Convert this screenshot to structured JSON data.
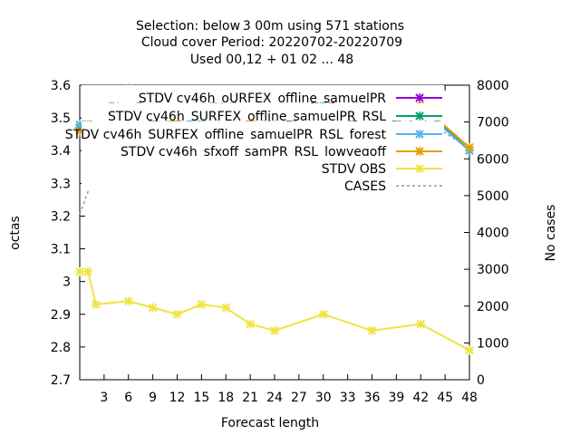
{
  "chart_data": {
    "type": "line",
    "title_lines": [
      "Selection: below 3 00m using   571 stations",
      "Cloud cover   Period: 20220702-20220709",
      "Used  00,12  + 01 02 ... 48"
    ],
    "xlabel": "Forecast length",
    "ylabel": "octas",
    "y2label": "No cases",
    "x_ticks": [
      3,
      6,
      9,
      12,
      15,
      18,
      21,
      24,
      27,
      30,
      33,
      36,
      39,
      42,
      45,
      48
    ],
    "xlim": [
      0,
      48
    ],
    "y_ticks": [
      "2.7",
      "2.8",
      "2.9",
      "3",
      "3.1",
      "3.2",
      "3.3",
      "3.4",
      "3.5",
      "3.6"
    ],
    "ylim": [
      2.7,
      3.6
    ],
    "y2_ticks": [
      0,
      1000,
      2000,
      3000,
      4000,
      5000,
      6000,
      7000,
      8000
    ],
    "y2lim": [
      0,
      8000
    ],
    "grid": false,
    "legend_position": "top-right",
    "x": [
      0,
      1,
      2,
      6,
      9,
      12,
      15,
      18,
      21,
      24,
      30,
      36,
      42,
      48
    ],
    "series": [
      {
        "name": "STDV cy46h_oURFEX_offline_samuelPR",
        "color": "#9400d3",
        "marker": "x",
        "values": [
          3.47,
          3.48,
          3.51,
          3.59,
          3.5,
          3.49,
          3.52,
          3.58,
          3.49,
          3.46,
          3.57,
          3.45,
          3.53,
          3.4
        ]
      },
      {
        "name": "STDV cy46h_SURFEX_offline_samuelPR_RSL",
        "color": "#009e73",
        "marker": "x",
        "values": [
          3.47,
          3.48,
          3.51,
          3.59,
          3.5,
          3.49,
          3.52,
          3.58,
          3.49,
          3.46,
          3.56,
          3.45,
          3.54,
          3.4
        ]
      },
      {
        "name": "STDV cy46h_SURFEX_offline_samuelPR_RSL_forest",
        "color": "#56b4e9",
        "marker": "x",
        "values": [
          3.48,
          3.48,
          3.51,
          3.58,
          3.49,
          3.48,
          3.5,
          3.58,
          3.48,
          3.45,
          3.55,
          3.44,
          3.53,
          3.4
        ]
      },
      {
        "name": "STDV cy46h_sfxoff_samPR_RSL_lowvegoff",
        "color": "#e69f00",
        "marker": "x",
        "values": [
          3.46,
          3.48,
          3.51,
          3.59,
          3.5,
          3.49,
          3.52,
          3.58,
          3.49,
          3.45,
          3.56,
          3.44,
          3.54,
          3.41
        ]
      },
      {
        "name": "STDV OBS",
        "color": "#f0e442",
        "marker": "x",
        "values": [
          3.03,
          3.03,
          2.93,
          2.94,
          2.92,
          2.9,
          2.93,
          2.92,
          2.87,
          2.85,
          2.9,
          2.85,
          2.87,
          2.79
        ]
      },
      {
        "name": "CASES",
        "color": "#999999",
        "dashed": true,
        "axis": "y2",
        "values": [
          4500,
          5100,
          6900,
          7800,
          7100,
          7100,
          7150,
          7600,
          7100,
          7000,
          7500,
          6800,
          7100,
          6300
        ]
      }
    ]
  }
}
